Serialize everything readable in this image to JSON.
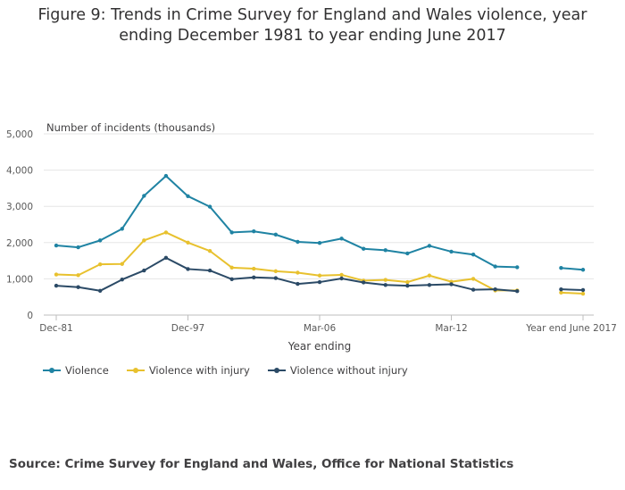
{
  "title_line1": "Figure 9: Trends in Crime Survey for England and Wales violence, year",
  "title_line2": "ending December 1981 to year ending June 2017",
  "source": "Source: Crime Survey for England and Wales, Office for National Statistics",
  "colors": {
    "violence": "#1f83a3",
    "with_injury": "#e8c12e",
    "without_injury": "#2b4a66",
    "grid": "#e6e6e6",
    "axis": "#bdbdbd"
  },
  "chart_data": {
    "type": "line",
    "title": "Figure 9: Trends in Crime Survey for England and Wales violence, year ending December 1981 to year ending June 2017",
    "ylabel": "Number of incidents (thousands)",
    "xlabel": "Year ending",
    "ylim": [
      0,
      5000
    ],
    "yticks": [
      0,
      1000,
      2000,
      3000,
      4000,
      5000
    ],
    "ytick_labels": [
      "0",
      "1,000",
      "2,000",
      "3,000",
      "4,000",
      "5,000"
    ],
    "x_tick_labels": [
      {
        "index": 0,
        "label": "Dec-81"
      },
      {
        "index": 6,
        "label": "Dec-97"
      },
      {
        "index": 12,
        "label": "Mar-06"
      },
      {
        "index": 18,
        "label": "Mar-12"
      },
      {
        "index": 24,
        "label": "Year end June 2017"
      }
    ],
    "n_points": 25,
    "legend_position": "bottom-left",
    "series": [
      {
        "name": "Violence",
        "color_key": "violence",
        "values": [
          1920,
          1870,
          2060,
          2380,
          3290,
          3840,
          3280,
          2990,
          2280,
          2310,
          2220,
          2020,
          1990,
          2110,
          1830,
          1790,
          1700,
          1910,
          1750,
          1670,
          1340,
          1320,
          null,
          1300,
          1250
        ]
      },
      {
        "name": "Violence with injury",
        "color_key": "with_injury",
        "values": [
          1120,
          1100,
          1400,
          1410,
          2060,
          2280,
          2000,
          1770,
          1310,
          1280,
          1210,
          1170,
          1090,
          1110,
          950,
          970,
          910,
          1090,
          920,
          1000,
          680,
          680,
          null,
          620,
          590
        ]
      },
      {
        "name": "Violence without injury",
        "color_key": "without_injury",
        "values": [
          810,
          770,
          670,
          980,
          1230,
          1580,
          1270,
          1230,
          990,
          1040,
          1020,
          860,
          910,
          1010,
          900,
          830,
          810,
          830,
          850,
          700,
          710,
          660,
          null,
          710,
          690
        ]
      }
    ]
  }
}
